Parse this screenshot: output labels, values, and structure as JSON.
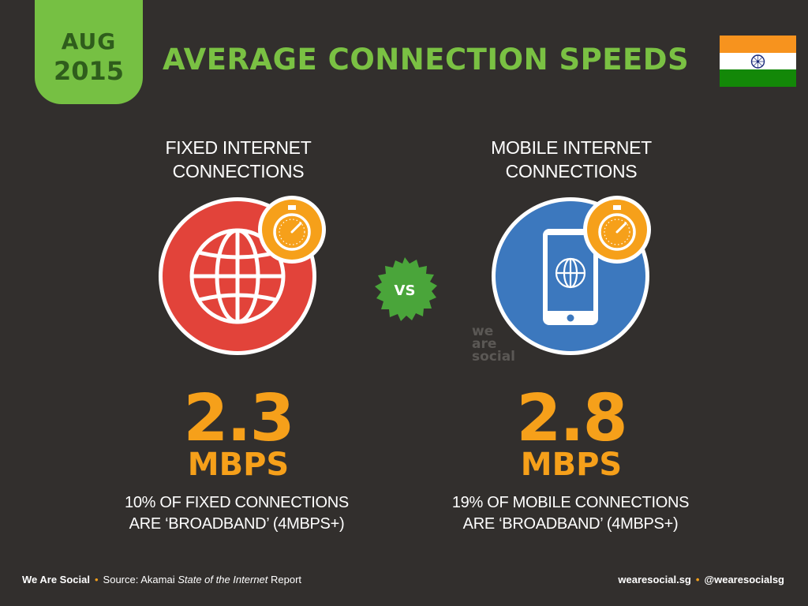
{
  "badge": {
    "month": "AUG",
    "year": "2015"
  },
  "title": "AVERAGE CONNECTION SPEEDS",
  "flag": {
    "colors": [
      "#f7931e",
      "#ffffff",
      "#138808"
    ],
    "chakra": "#1b2a7a"
  },
  "fixed": {
    "heading_line1": "FIXED INTERNET",
    "heading_line2": "CONNECTIONS",
    "icon": "globe-icon",
    "circle_color": "#e2433a",
    "value": "2.3",
    "unit": "MBPS",
    "note_line1": "10% OF FIXED CONNECTIONS",
    "note_line2": "ARE ‘BROADBAND’ (4MBPS+)"
  },
  "mobile": {
    "heading_line1": "MOBILE INTERNET",
    "heading_line2": "CONNECTIONS",
    "icon": "smartphone-icon",
    "circle_color": "#3c78be",
    "value": "2.8",
    "unit": "MBPS",
    "note_line1": "19% OF MOBILE CONNECTIONS",
    "note_line2": "ARE ‘BROADBAND’ (4MBPS+)"
  },
  "vs_label": "VS",
  "watermark": {
    "line1": "we",
    "line2": "are",
    "line3": "social"
  },
  "footer": {
    "brand": "We Are Social",
    "source_prefix": "Source: Akamai ",
    "source_italic": "State of the Internet",
    "source_suffix": " Report",
    "site": "wearesocial.sg",
    "handle": "@wearesocialsg"
  },
  "colors": {
    "accent_green": "#7ac143",
    "accent_orange": "#f6a01a",
    "background": "#322f2d"
  }
}
